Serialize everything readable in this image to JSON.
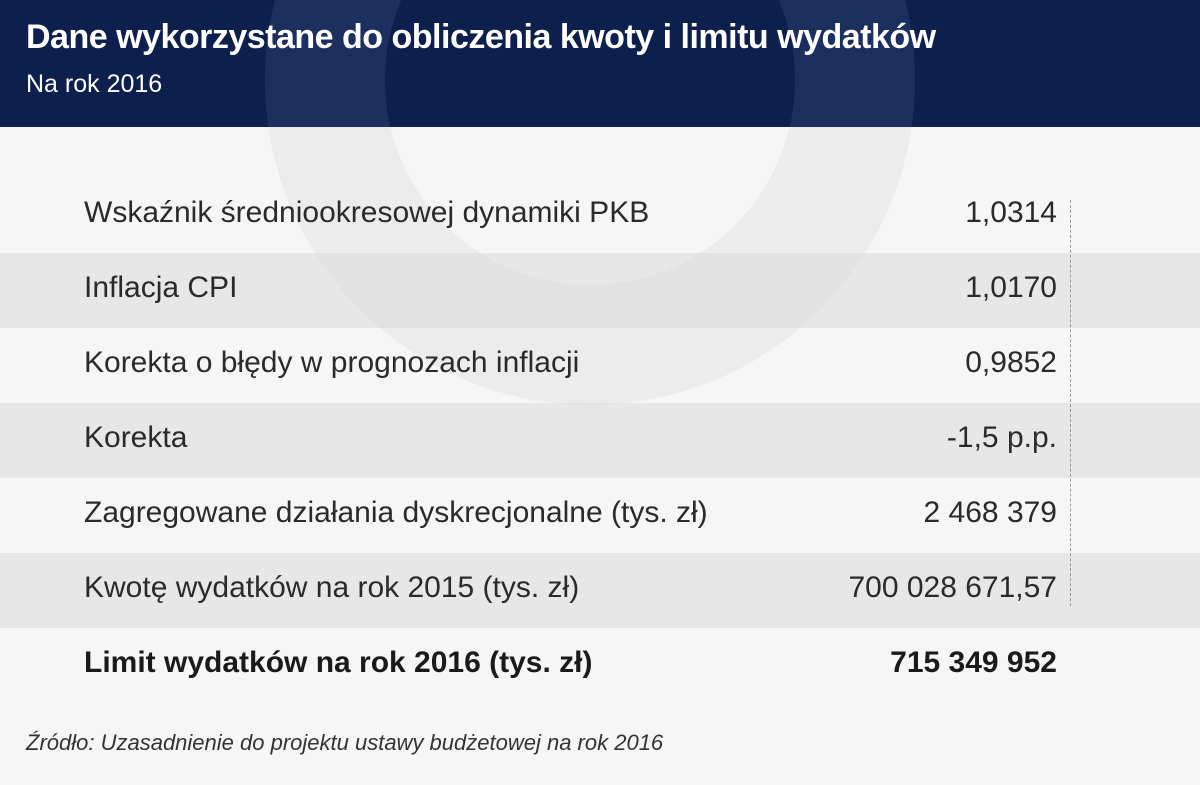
{
  "header": {
    "title": "Dane wykorzystane do obliczenia kwoty i limitu wydatków",
    "subtitle": "Na rok 2016"
  },
  "table": {
    "rows": [
      {
        "label": "Wskaźnik średniookresowej dynamiki PKB",
        "value": "1,0314"
      },
      {
        "label": "Inflacja CPI",
        "value": "1,0170"
      },
      {
        "label": "Korekta o błędy w prognozach inflacji",
        "value": "0,9852"
      },
      {
        "label": "Korekta",
        "value": "-1,5 p.p."
      },
      {
        "label": "Zagregowane działania dyskrecjonalne (tys. zł)",
        "value": "2 468 379"
      },
      {
        "label": "Kwotę wydatków na rok 2015 (tys. zł)",
        "value": "700 028 671,57"
      }
    ],
    "total": {
      "label": "Limit wydatków na rok 2016 (tys. zł)",
      "value": "715 349 952"
    }
  },
  "source": "Źródło: Uzasadnienie do projektu ustawy budżetowej na rok 2016",
  "colors": {
    "header_bg": "#0d1f4c",
    "stripe": "#dadada",
    "text": "#2a2a2a"
  }
}
